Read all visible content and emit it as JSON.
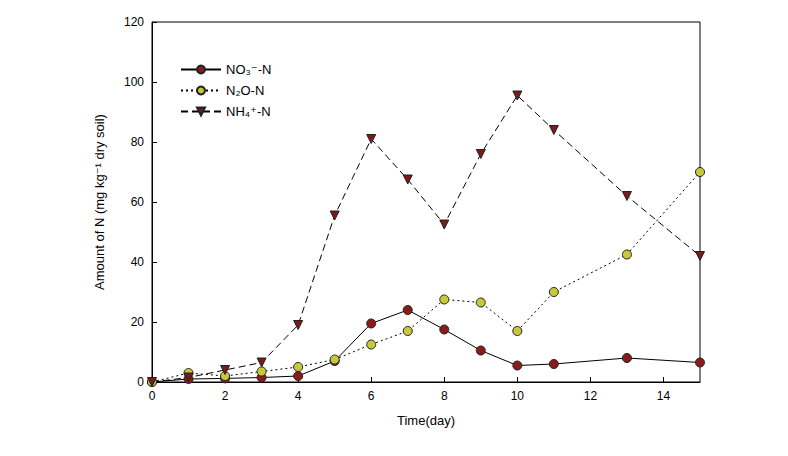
{
  "chart_data": {
    "type": "line",
    "x_label": "Time(day)",
    "y_label": "Amount of N (mg kg⁻¹ dry soil)",
    "x": [
      0,
      1,
      2,
      3,
      4,
      5,
      6,
      7,
      8,
      9,
      10,
      11,
      13,
      15
    ],
    "series": [
      {
        "name": "NO₃⁻-N",
        "color": "#8b1a1a",
        "marker": "circle",
        "line_style": "solid",
        "values": [
          0,
          1,
          1.2,
          1.5,
          2,
          7,
          19.5,
          24,
          17.5,
          10.5,
          5.5,
          6,
          8,
          6.5
        ]
      },
      {
        "name": "N₂O-N",
        "color": "#c8c83c",
        "marker": "circle",
        "line_style": "dotted",
        "values": [
          0,
          3,
          2,
          3.5,
          5,
          7.5,
          12.5,
          17,
          27.5,
          26.5,
          17,
          30,
          42.5,
          70
        ]
      },
      {
        "name": "NH₄⁺-N",
        "color": "#7b1a1a",
        "marker": "triangle_down",
        "line_style": "dashed",
        "values": [
          0,
          1.5,
          4,
          6.5,
          19,
          55.5,
          81,
          67.5,
          52.5,
          76,
          95.5,
          84,
          62,
          42
        ]
      }
    ],
    "xlim": [
      0,
      15
    ],
    "xticks": [
      0,
      2,
      4,
      6,
      8,
      10,
      12,
      14
    ],
    "ylim": [
      0,
      120
    ],
    "yticks": [
      0,
      20,
      40,
      60,
      80,
      100,
      120
    ],
    "grid": false,
    "legend": "upper left"
  }
}
